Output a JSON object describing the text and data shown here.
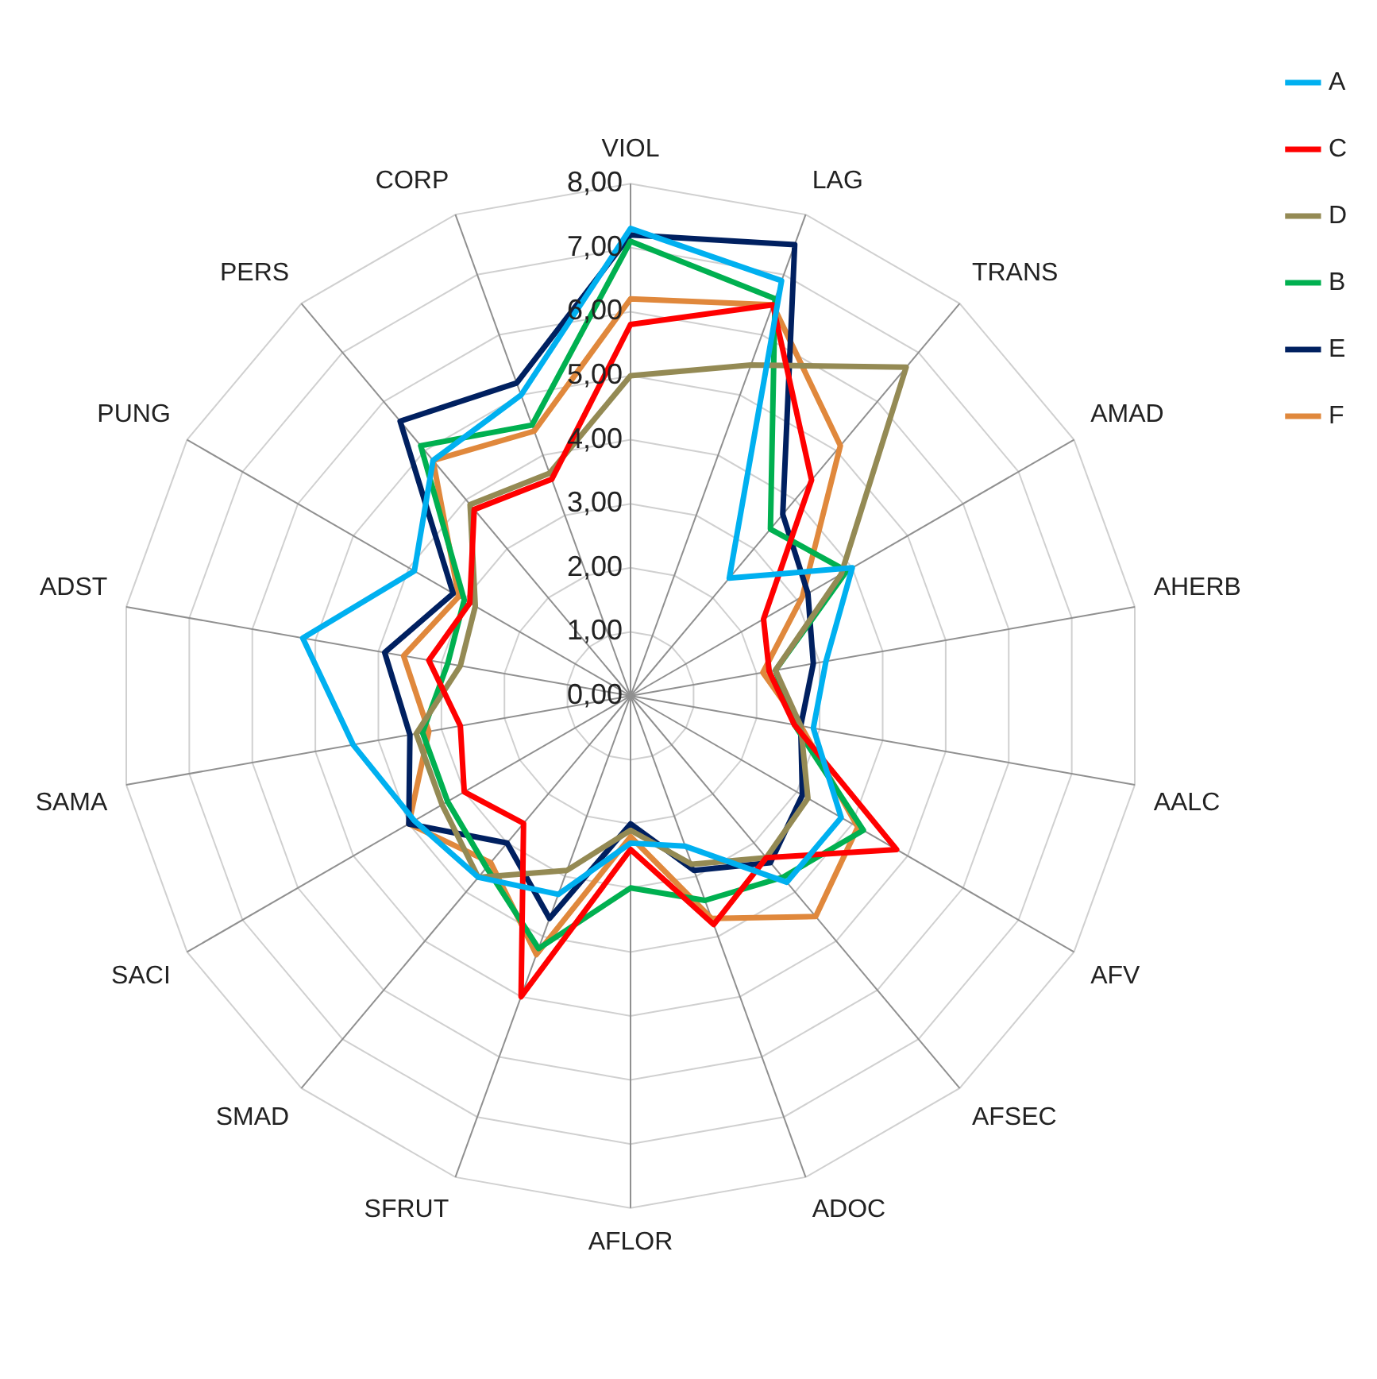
{
  "chart_data": {
    "type": "radar",
    "categories": [
      "VIOL",
      "LAG",
      "TRANS",
      "AMAD",
      "AHERB",
      "AALC",
      "AFV",
      "AFSEC",
      "ADOC",
      "AFLOR",
      "SFRUT",
      "SMAD",
      "SACI",
      "SAMA",
      "ADST",
      "PUNG",
      "PERS",
      "CORP"
    ],
    "series": [
      {
        "name": "A",
        "color": "#00b0f0",
        "values": [
          7.3,
          6.9,
          2.4,
          4.0,
          3.1,
          2.9,
          3.8,
          3.8,
          2.5,
          2.3,
          3.3,
          3.7,
          3.9,
          4.4,
          5.2,
          3.9,
          4.8,
          5.0
        ]
      },
      {
        "name": "C",
        "color": "#ff0000",
        "values": [
          5.8,
          6.5,
          4.4,
          2.4,
          2.2,
          2.6,
          4.8,
          3.3,
          3.8,
          2.4,
          5.0,
          2.6,
          3.0,
          2.7,
          3.2,
          2.9,
          3.8,
          3.6
        ]
      },
      {
        "name": "D",
        "color": "#948a54",
        "values": [
          5.0,
          5.5,
          6.7,
          3.8,
          2.3,
          2.7,
          3.2,
          3.3,
          2.8,
          2.1,
          2.9,
          3.7,
          3.4,
          3.4,
          2.7,
          2.8,
          3.9,
          3.7
        ]
      },
      {
        "name": "B",
        "color": "#00b050",
        "values": [
          7.1,
          6.6,
          3.4,
          3.9,
          2.3,
          2.6,
          4.2,
          3.7,
          3.4,
          3.0,
          4.2,
          3.5,
          3.3,
          3.3,
          2.9,
          3.0,
          5.1,
          4.5
        ]
      },
      {
        "name": "E",
        "color": "#002060",
        "values": [
          7.2,
          7.5,
          3.7,
          3.2,
          2.9,
          2.7,
          3.1,
          3.4,
          2.9,
          2.0,
          3.7,
          3.0,
          4.0,
          3.5,
          3.9,
          3.2,
          5.6,
          5.2
        ]
      },
      {
        "name": "F",
        "color": "#e0883c",
        "values": [
          6.2,
          6.5,
          5.1,
          3.1,
          2.1,
          2.7,
          4.1,
          4.5,
          3.7,
          2.2,
          4.3,
          3.4,
          4.0,
          3.2,
          3.6,
          3.1,
          4.8,
          4.4
        ]
      }
    ],
    "ylim": [
      0,
      8
    ],
    "yticks": [
      {
        "value": 0,
        "label": "0,00"
      },
      {
        "value": 1,
        "label": "1,00"
      },
      {
        "value": 2,
        "label": "2,00"
      },
      {
        "value": 3,
        "label": "3,00"
      },
      {
        "value": 4,
        "label": "4,00"
      },
      {
        "value": 5,
        "label": "5,00"
      },
      {
        "value": 6,
        "label": "6,00"
      },
      {
        "value": 7,
        "label": "7,00"
      },
      {
        "value": 8,
        "label": "8,00"
      }
    ],
    "grid": true,
    "legend": "top right",
    "marker": "none",
    "line_style": "solid"
  }
}
